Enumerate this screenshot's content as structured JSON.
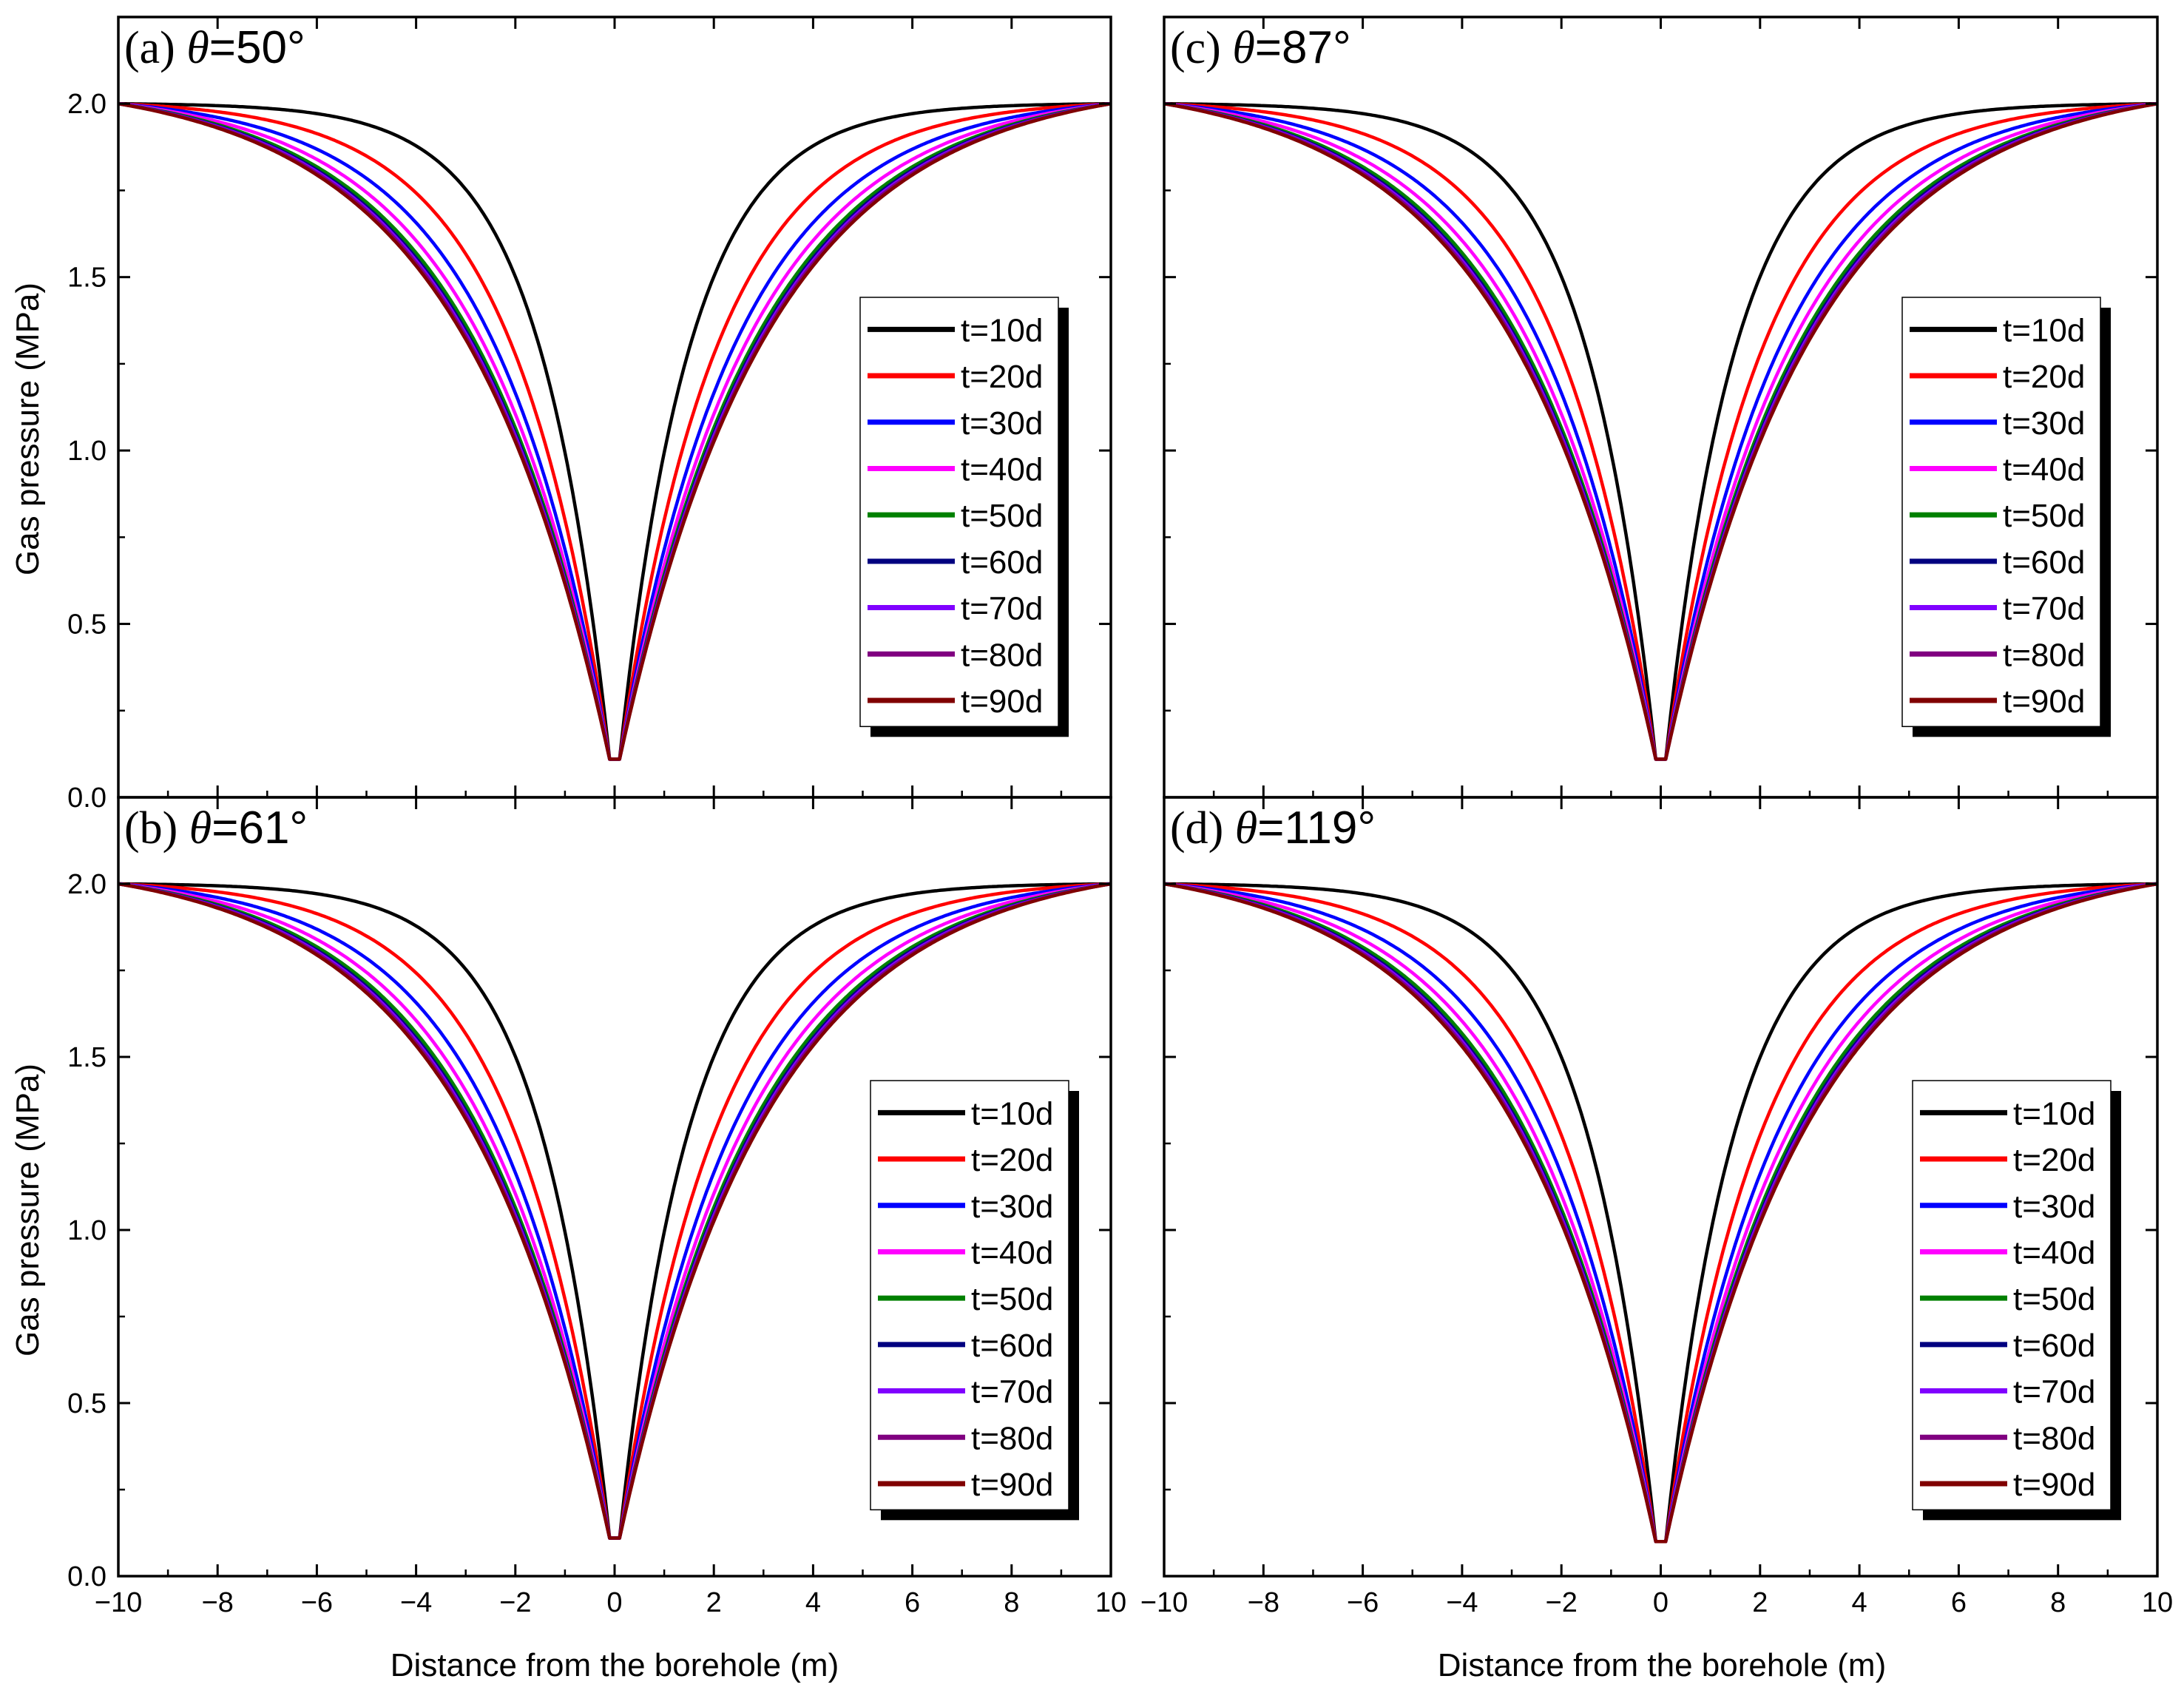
{
  "figure": {
    "xlabel": "Distance from the borehole (m)",
    "ylabel": "Gas pressure (MPa)",
    "xticks": [
      "−10",
      "−8",
      "−6",
      "−4",
      "−2",
      "0",
      "2",
      "4",
      "6",
      "8",
      "10"
    ],
    "yticks": [
      "0.0",
      "0.5",
      "1.0",
      "1.5",
      "2.0"
    ]
  },
  "chart_data": [
    {
      "type": "line",
      "panel": "a",
      "label_prefix": "(a) ",
      "label_symbol": "θ",
      "label_value": "=50°",
      "xlim": [
        -10,
        10
      ],
      "ylim": [
        0,
        2.25
      ],
      "xlabel": "Distance from the borehole (m)",
      "ylabel": "Gas pressure (MPa)",
      "legend_position": "right",
      "series": [
        {
          "name": "t=10d",
          "color": "#000000",
          "rate": 0.7,
          "pmin": 0.11
        },
        {
          "name": "t=20d",
          "color": "#ff0000",
          "rate": 0.5,
          "pmin": 0.11
        },
        {
          "name": "t=30d",
          "color": "#0000ff",
          "rate": 0.42,
          "pmin": 0.11
        },
        {
          "name": "t=40d",
          "color": "#ff00ff",
          "rate": 0.38,
          "pmin": 0.11
        },
        {
          "name": "t=50d",
          "color": "#008000",
          "rate": 0.355,
          "pmin": 0.11
        },
        {
          "name": "t=60d",
          "color": "#000080",
          "rate": 0.345,
          "pmin": 0.11
        },
        {
          "name": "t=70d",
          "color": "#8000ff",
          "rate": 0.34,
          "pmin": 0.11
        },
        {
          "name": "t=80d",
          "color": "#800080",
          "rate": 0.335,
          "pmin": 0.11
        },
        {
          "name": "t=90d",
          "color": "#800000",
          "rate": 0.33,
          "pmin": 0.11
        }
      ]
    },
    {
      "type": "line",
      "panel": "b",
      "label_prefix": "(b) ",
      "label_symbol": "θ",
      "label_value": "=61°",
      "xlim": [
        -10,
        10
      ],
      "ylim": [
        0,
        2.25
      ],
      "xlabel": "Distance from the borehole (m)",
      "ylabel": "Gas pressure (MPa)",
      "legend_position": "right",
      "series": [
        {
          "name": "t=10d",
          "color": "#000000",
          "rate": 0.7,
          "pmin": 0.11
        },
        {
          "name": "t=20d",
          "color": "#ff0000",
          "rate": 0.5,
          "pmin": 0.11
        },
        {
          "name": "t=30d",
          "color": "#0000ff",
          "rate": 0.42,
          "pmin": 0.11
        },
        {
          "name": "t=40d",
          "color": "#ff00ff",
          "rate": 0.38,
          "pmin": 0.11
        },
        {
          "name": "t=50d",
          "color": "#008000",
          "rate": 0.355,
          "pmin": 0.11
        },
        {
          "name": "t=60d",
          "color": "#000080",
          "rate": 0.345,
          "pmin": 0.11
        },
        {
          "name": "t=70d",
          "color": "#8000ff",
          "rate": 0.34,
          "pmin": 0.11
        },
        {
          "name": "t=80d",
          "color": "#800080",
          "rate": 0.335,
          "pmin": 0.11
        },
        {
          "name": "t=90d",
          "color": "#800000",
          "rate": 0.33,
          "pmin": 0.11
        }
      ]
    },
    {
      "type": "line",
      "panel": "c",
      "label_prefix": "(c) ",
      "label_symbol": "θ",
      "label_value": "=87°",
      "xlim": [
        -10,
        10
      ],
      "ylim": [
        0,
        2.25
      ],
      "xlabel": "Distance from the borehole (m)",
      "ylabel": "Gas pressure (MPa)",
      "legend_position": "right",
      "series": [
        {
          "name": "t=10d",
          "color": "#000000",
          "rate": 0.7,
          "pmin": 0.11
        },
        {
          "name": "t=20d",
          "color": "#ff0000",
          "rate": 0.5,
          "pmin": 0.11
        },
        {
          "name": "t=30d",
          "color": "#0000ff",
          "rate": 0.42,
          "pmin": 0.11
        },
        {
          "name": "t=40d",
          "color": "#ff00ff",
          "rate": 0.38,
          "pmin": 0.11
        },
        {
          "name": "t=50d",
          "color": "#008000",
          "rate": 0.355,
          "pmin": 0.11
        },
        {
          "name": "t=60d",
          "color": "#000080",
          "rate": 0.345,
          "pmin": 0.11
        },
        {
          "name": "t=70d",
          "color": "#8000ff",
          "rate": 0.34,
          "pmin": 0.11
        },
        {
          "name": "t=80d",
          "color": "#800080",
          "rate": 0.335,
          "pmin": 0.11
        },
        {
          "name": "t=90d",
          "color": "#800000",
          "rate": 0.33,
          "pmin": 0.11
        }
      ]
    },
    {
      "type": "line",
      "panel": "d",
      "label_prefix": "(d) ",
      "label_symbol": "θ",
      "label_value": "=119°",
      "xlim": [
        -10,
        10
      ],
      "ylim": [
        0,
        2.25
      ],
      "xlabel": "Distance from the borehole (m)",
      "ylabel": "Gas pressure (MPa)",
      "legend_position": "right",
      "series": [
        {
          "name": "t=10d",
          "color": "#000000",
          "rate": 0.7,
          "pmin": 0.1
        },
        {
          "name": "t=20d",
          "color": "#ff0000",
          "rate": 0.5,
          "pmin": 0.1
        },
        {
          "name": "t=30d",
          "color": "#0000ff",
          "rate": 0.42,
          "pmin": 0.1
        },
        {
          "name": "t=40d",
          "color": "#ff00ff",
          "rate": 0.38,
          "pmin": 0.1
        },
        {
          "name": "t=50d",
          "color": "#008000",
          "rate": 0.355,
          "pmin": 0.1
        },
        {
          "name": "t=60d",
          "color": "#000080",
          "rate": 0.345,
          "pmin": 0.1
        },
        {
          "name": "t=70d",
          "color": "#8000ff",
          "rate": 0.34,
          "pmin": 0.1
        },
        {
          "name": "t=80d",
          "color": "#800080",
          "rate": 0.335,
          "pmin": 0.1
        },
        {
          "name": "t=90d",
          "color": "#800000",
          "rate": 0.33,
          "pmin": 0.1
        }
      ]
    }
  ]
}
